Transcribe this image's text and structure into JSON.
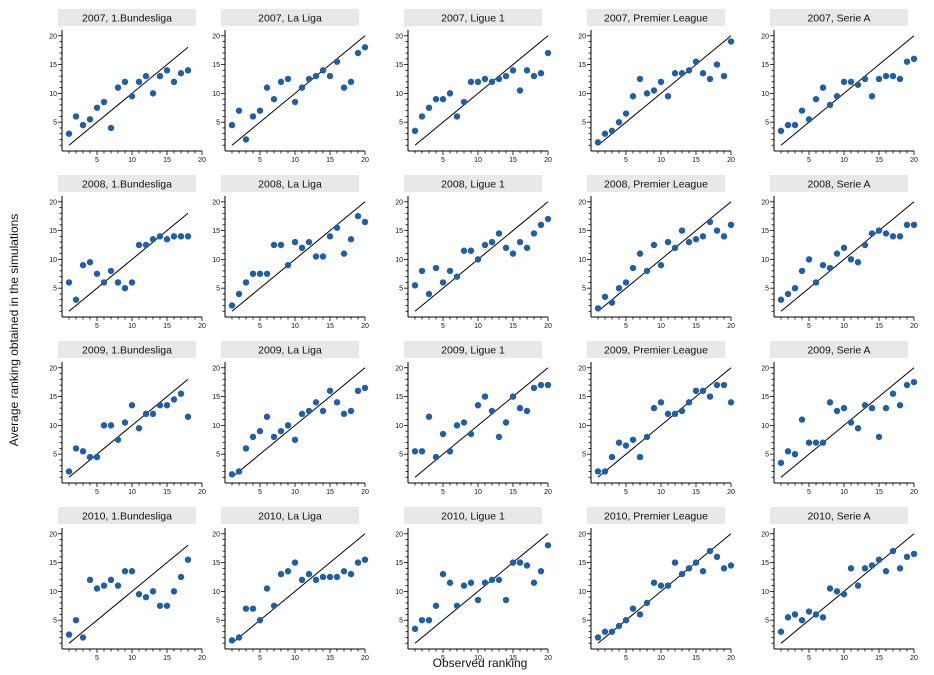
{
  "chart_data": {
    "type": "scatter",
    "xlabel": "Observed ranking",
    "ylabel": "Average ranking obtained in the simulations",
    "xlim": [
      0,
      20
    ],
    "ylim": [
      0,
      21
    ],
    "xticks": [
      5,
      10,
      15,
      20
    ],
    "yticks": [
      5,
      10,
      15,
      20
    ],
    "reference_line": "y = x",
    "point_color": "#1f5fa6",
    "strip_color": "#e8e8e8",
    "panels": [
      {
        "title": "2007, 1.Bundesliga",
        "x": [
          1,
          2,
          3,
          4,
          5,
          6,
          7,
          8,
          9,
          10,
          11,
          12,
          13,
          14,
          15,
          16,
          17,
          18
        ],
        "y": [
          3,
          6,
          4.5,
          5.5,
          7.5,
          8.5,
          4,
          11,
          12,
          9.5,
          12,
          13,
          10,
          13,
          14,
          12,
          13.5,
          14
        ]
      },
      {
        "title": "2007, La Liga",
        "x": [
          1,
          2,
          3,
          4,
          5,
          6,
          7,
          8,
          9,
          10,
          11,
          12,
          13,
          14,
          15,
          16,
          17,
          18,
          19,
          20
        ],
        "y": [
          4.5,
          7,
          2,
          6,
          7,
          11,
          9,
          12,
          12.5,
          8.5,
          11,
          12.5,
          13,
          14,
          13,
          15.5,
          11,
          12,
          17,
          18
        ]
      },
      {
        "title": "2007, Ligue 1",
        "x": [
          1,
          2,
          3,
          4,
          5,
          6,
          7,
          8,
          9,
          10,
          11,
          12,
          13,
          14,
          15,
          16,
          17,
          18,
          19,
          20
        ],
        "y": [
          3.5,
          6,
          7.5,
          9,
          9,
          10,
          6,
          8.5,
          12,
          12,
          12.5,
          12,
          12.5,
          13,
          14,
          10.5,
          14,
          13,
          13.5,
          17
        ]
      },
      {
        "title": "2007, Premier League",
        "x": [
          1,
          2,
          3,
          4,
          5,
          6,
          7,
          8,
          9,
          10,
          11,
          12,
          13,
          14,
          15,
          16,
          17,
          18,
          19,
          20
        ],
        "y": [
          1.5,
          3,
          3.5,
          5,
          6.5,
          9.5,
          12.5,
          10,
          10.5,
          12,
          9.5,
          13.5,
          13.5,
          14,
          15.5,
          13.5,
          12.5,
          15,
          13,
          19
        ]
      },
      {
        "title": "2007, Serie A",
        "x": [
          1,
          2,
          3,
          4,
          5,
          6,
          7,
          8,
          9,
          10,
          11,
          12,
          13,
          14,
          15,
          16,
          17,
          18,
          19,
          20
        ],
        "y": [
          3.5,
          4.5,
          4.5,
          7,
          5.5,
          9,
          11,
          8,
          9.5,
          12,
          12,
          11.5,
          12.5,
          9.5,
          12.5,
          13,
          13,
          12.5,
          15.5,
          16
        ]
      },
      {
        "title": "2008, 1.Bundesliga",
        "x": [
          1,
          2,
          3,
          4,
          5,
          6,
          7,
          8,
          9,
          10,
          11,
          12,
          13,
          14,
          15,
          16,
          17,
          18
        ],
        "y": [
          6,
          3,
          9,
          9.5,
          7.5,
          6,
          8,
          6,
          5,
          6,
          12.5,
          12.5,
          13.5,
          14,
          13.5,
          14,
          14,
          14
        ]
      },
      {
        "title": "2008, La Liga",
        "x": [
          1,
          2,
          3,
          4,
          5,
          6,
          7,
          8,
          9,
          10,
          11,
          12,
          13,
          14,
          15,
          16,
          17,
          18,
          19,
          20
        ],
        "y": [
          2,
          4,
          6,
          7.5,
          7.5,
          7.5,
          12.5,
          12.5,
          9,
          13,
          12,
          13,
          10.5,
          10.5,
          14,
          15.5,
          11,
          13.5,
          17.5,
          16.5
        ]
      },
      {
        "title": "2008, Ligue 1",
        "x": [
          1,
          2,
          3,
          4,
          5,
          6,
          7,
          8,
          9,
          10,
          11,
          12,
          13,
          14,
          15,
          16,
          17,
          18,
          19,
          20
        ],
        "y": [
          5.5,
          8,
          4,
          8.5,
          6,
          8,
          7,
          11.5,
          11.5,
          10,
          12.5,
          13,
          14.5,
          12,
          11,
          13,
          12,
          14.5,
          16,
          17
        ]
      },
      {
        "title": "2008, Premier League",
        "x": [
          1,
          2,
          3,
          4,
          5,
          6,
          7,
          8,
          9,
          10,
          11,
          12,
          13,
          14,
          15,
          16,
          17,
          18,
          19,
          20
        ],
        "y": [
          1.5,
          3.5,
          2.5,
          5,
          6,
          8.5,
          11,
          8,
          12.5,
          9,
          13,
          12,
          15,
          13,
          13.5,
          14,
          16.5,
          15,
          14,
          16
        ]
      },
      {
        "title": "2008, Serie A",
        "x": [
          1,
          2,
          3,
          4,
          5,
          6,
          7,
          8,
          9,
          10,
          11,
          12,
          13,
          14,
          15,
          16,
          17,
          18,
          19,
          20
        ],
        "y": [
          3,
          4,
          5,
          8,
          10,
          6,
          9,
          8.5,
          11,
          12,
          10,
          9.5,
          12.5,
          14.5,
          15,
          14.5,
          14,
          14,
          16,
          16
        ]
      },
      {
        "title": "2009, 1.Bundesliga",
        "x": [
          1,
          2,
          3,
          4,
          5,
          6,
          7,
          8,
          9,
          10,
          11,
          12,
          13,
          14,
          15,
          16,
          17,
          18
        ],
        "y": [
          2,
          6,
          5.5,
          4.5,
          4.5,
          10,
          10,
          7.5,
          10.5,
          13.5,
          9.5,
          12,
          12,
          13.5,
          13.5,
          14.5,
          15.5,
          11.5
        ]
      },
      {
        "title": "2009, La Liga",
        "x": [
          1,
          2,
          3,
          4,
          5,
          6,
          7,
          8,
          9,
          10,
          11,
          12,
          13,
          14,
          15,
          16,
          17,
          18,
          19,
          20
        ],
        "y": [
          1.5,
          2,
          6,
          8,
          9,
          11.5,
          8,
          9,
          10,
          7.5,
          12,
          12.5,
          14,
          12.5,
          16,
          14,
          12,
          12.5,
          16,
          16.5
        ]
      },
      {
        "title": "2009, Ligue 1",
        "x": [
          1,
          2,
          3,
          4,
          5,
          6,
          7,
          8,
          9,
          10,
          11,
          12,
          13,
          14,
          15,
          16,
          17,
          18,
          19,
          20
        ],
        "y": [
          5.5,
          5.5,
          11.5,
          4.5,
          8.5,
          5.5,
          10,
          10.5,
          8.5,
          13.5,
          15,
          12.5,
          8,
          10.5,
          15,
          13,
          12.5,
          16.5,
          17,
          17
        ]
      },
      {
        "title": "2009, Premier League",
        "x": [
          1,
          2,
          3,
          4,
          5,
          6,
          7,
          8,
          9,
          10,
          11,
          12,
          13,
          14,
          15,
          16,
          17,
          18,
          19,
          20
        ],
        "y": [
          2,
          2,
          4.5,
          7,
          6.5,
          7.5,
          4.5,
          8,
          13,
          14,
          12,
          12,
          12.5,
          14,
          16,
          16,
          15,
          17,
          17,
          14
        ]
      },
      {
        "title": "2009, Serie A",
        "x": [
          1,
          2,
          3,
          4,
          5,
          6,
          7,
          8,
          9,
          10,
          11,
          12,
          13,
          14,
          15,
          16,
          17,
          18,
          19,
          20
        ],
        "y": [
          3.5,
          5.5,
          5,
          11,
          7,
          7,
          7,
          14,
          12.5,
          13,
          10.5,
          9.5,
          13.5,
          13,
          8,
          13,
          15.5,
          13.5,
          17,
          17.5
        ]
      },
      {
        "title": "2010, 1.Bundesliga",
        "x": [
          1,
          2,
          3,
          4,
          5,
          6,
          7,
          8,
          9,
          10,
          11,
          12,
          13,
          14,
          15,
          16,
          17,
          18
        ],
        "y": [
          2.5,
          5,
          2,
          12,
          10.5,
          11,
          12,
          11,
          13.5,
          13.5,
          9.5,
          9,
          10,
          7.5,
          7.5,
          10,
          12.5,
          15.5
        ]
      },
      {
        "title": "2010, La Liga",
        "x": [
          1,
          2,
          3,
          4,
          5,
          6,
          7,
          8,
          9,
          10,
          11,
          12,
          13,
          14,
          15,
          16,
          17,
          18,
          19,
          20
        ],
        "y": [
          1.5,
          2,
          7,
          7,
          5,
          10.5,
          7.5,
          13,
          13.5,
          15,
          12,
          13,
          12,
          12.5,
          12.5,
          12.5,
          13.5,
          13,
          15,
          15.5
        ]
      },
      {
        "title": "2010, Ligue 1",
        "x": [
          1,
          2,
          3,
          4,
          5,
          6,
          7,
          8,
          9,
          10,
          11,
          12,
          13,
          14,
          15,
          16,
          17,
          18,
          19,
          20
        ],
        "y": [
          3.5,
          5,
          5,
          7.5,
          13,
          11.5,
          7.5,
          11,
          11.5,
          8.5,
          11.5,
          12,
          12,
          8.5,
          15,
          15,
          14.5,
          11.5,
          13.5,
          18
        ]
      },
      {
        "title": "2010, Premier League",
        "x": [
          1,
          2,
          3,
          4,
          5,
          6,
          7,
          8,
          9,
          10,
          11,
          12,
          13,
          14,
          15,
          16,
          17,
          18,
          19,
          20
        ],
        "y": [
          2,
          3,
          3,
          4,
          5,
          7,
          6,
          8,
          11.5,
          11,
          11,
          15,
          13,
          14,
          15,
          13.5,
          17,
          16,
          14,
          14.5
        ]
      },
      {
        "title": "2010, Serie A",
        "x": [
          1,
          2,
          3,
          4,
          5,
          6,
          7,
          8,
          9,
          10,
          11,
          12,
          13,
          14,
          15,
          16,
          17,
          18,
          19,
          20
        ],
        "y": [
          3,
          5.5,
          6,
          5,
          6.5,
          6,
          5.5,
          10.5,
          10,
          9.5,
          14,
          11,
          14,
          14.5,
          15.5,
          13.5,
          17,
          14,
          16,
          16.5
        ]
      }
    ]
  }
}
